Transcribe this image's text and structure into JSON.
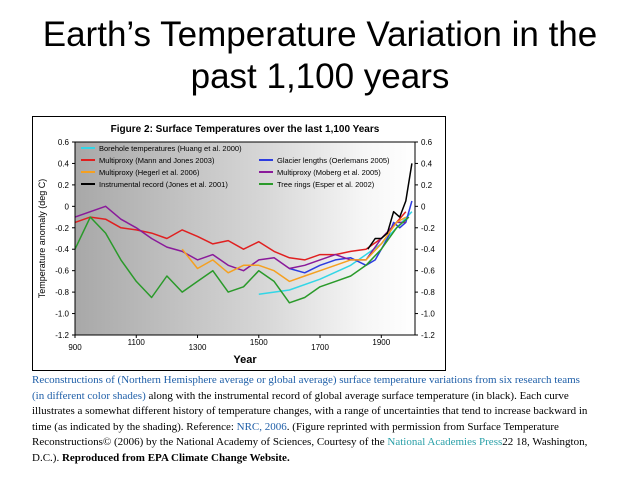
{
  "slide": {
    "title_line1": "Earth’s Temperature Variation in the",
    "title_line2": "past 1,100 years"
  },
  "chart_data": {
    "type": "line",
    "title": "Figure 2: Surface Temperatures over the last 1,100 Years",
    "xlabel": "Year",
    "ylabel": "Temperature anomaly (deg C)",
    "xlim": [
      900,
      2010
    ],
    "ylim": [
      -1.2,
      0.6
    ],
    "x_ticks": [
      "900",
      "1100",
      "1300",
      "1500",
      "1700",
      "1900"
    ],
    "y_ticks": [
      "0.6",
      "0.4",
      "0.2",
      "0",
      "-0.2",
      "-0.4",
      "-0.6",
      "-0.8",
      "-1.0",
      "-1.2"
    ],
    "grid": false,
    "legend_position": "top",
    "series": [
      {
        "name": "Borehole temperatures (Huang et al. 2000)",
        "color": "#33d6e6",
        "x": [
          1500,
          1600,
          1700,
          1800,
          1900,
          2000
        ],
        "y": [
          -0.82,
          -0.78,
          -0.68,
          -0.55,
          -0.35,
          -0.05
        ]
      },
      {
        "name": "Glacier lengths (Oerlemans 2005)",
        "color": "#2c3ce0",
        "x": [
          1600,
          1650,
          1700,
          1750,
          1800,
          1850,
          1880,
          1900,
          1920,
          1940,
          1960,
          1980,
          2000
        ],
        "y": [
          -0.58,
          -0.62,
          -0.55,
          -0.5,
          -0.48,
          -0.55,
          -0.5,
          -0.4,
          -0.3,
          -0.15,
          -0.2,
          -0.15,
          0.05
        ]
      },
      {
        "name": "Multiproxy (Mann and Jones 2003)",
        "color": "#e02020",
        "x": [
          900,
          950,
          1000,
          1050,
          1100,
          1150,
          1200,
          1250,
          1300,
          1350,
          1400,
          1450,
          1500,
          1550,
          1600,
          1650,
          1700,
          1750,
          1800,
          1850,
          1900,
          1950,
          1980
        ],
        "y": [
          -0.15,
          -0.1,
          -0.12,
          -0.2,
          -0.22,
          -0.25,
          -0.3,
          -0.22,
          -0.28,
          -0.35,
          -0.32,
          -0.4,
          -0.33,
          -0.42,
          -0.48,
          -0.5,
          -0.45,
          -0.45,
          -0.42,
          -0.4,
          -0.3,
          -0.15,
          -0.05
        ]
      },
      {
        "name": "Multiproxy (Moberg et al. 2005)",
        "color": "#8a1a9a",
        "x": [
          900,
          950,
          1000,
          1050,
          1100,
          1150,
          1200,
          1250,
          1300,
          1350,
          1400,
          1450,
          1500,
          1550,
          1600,
          1650,
          1700,
          1750,
          1800,
          1850,
          1900,
          1950,
          1980
        ],
        "y": [
          -0.1,
          -0.05,
          0.0,
          -0.12,
          -0.2,
          -0.3,
          -0.38,
          -0.42,
          -0.5,
          -0.45,
          -0.55,
          -0.6,
          -0.5,
          -0.48,
          -0.58,
          -0.55,
          -0.5,
          -0.45,
          -0.5,
          -0.5,
          -0.3,
          -0.15,
          -0.15
        ]
      },
      {
        "name": "Multiproxy (Hegerl et al. 2006)",
        "color": "#f5a020",
        "x": [
          1250,
          1300,
          1350,
          1400,
          1450,
          1500,
          1550,
          1600,
          1650,
          1700,
          1750,
          1800,
          1850,
          1900,
          1950,
          1980
        ],
        "y": [
          -0.4,
          -0.58,
          -0.5,
          -0.62,
          -0.55,
          -0.55,
          -0.6,
          -0.7,
          -0.65,
          -0.6,
          -0.55,
          -0.5,
          -0.5,
          -0.35,
          -0.15,
          -0.1
        ]
      },
      {
        "name": "Tree rings (Esper et al. 2002)",
        "color": "#2a9a2a",
        "x": [
          900,
          950,
          1000,
          1050,
          1100,
          1150,
          1200,
          1250,
          1300,
          1350,
          1400,
          1450,
          1500,
          1550,
          1600,
          1650,
          1700,
          1750,
          1800,
          1850,
          1900,
          1950,
          1990
        ],
        "y": [
          -0.4,
          -0.1,
          -0.25,
          -0.5,
          -0.7,
          -0.85,
          -0.65,
          -0.8,
          -0.7,
          -0.6,
          -0.8,
          -0.75,
          -0.6,
          -0.7,
          -0.9,
          -0.85,
          -0.75,
          -0.7,
          -0.65,
          -0.55,
          -0.4,
          -0.2,
          -0.1
        ]
      },
      {
        "name": "Instrumental record (Jones et al. 2001)",
        "color": "#000000",
        "x": [
          1856,
          1880,
          1900,
          1920,
          1940,
          1960,
          1980,
          2000
        ],
        "y": [
          -0.4,
          -0.3,
          -0.3,
          -0.25,
          -0.05,
          -0.1,
          0.05,
          0.4
        ]
      }
    ]
  },
  "caption": {
    "link_text": "Reconstructions of (Northern Hemisphere average or global average) surface temperature variations from six research teams (in different color shades)",
    "text1": " along with the instrumental record of global average surface temperature (in black). Each curve illustrates a somewhat different history of temperature changes, with a range of uncertainties that tend to increase backward in time (as indicated by the shading). Reference: ",
    "ref_link": "NRC, 2006",
    "text2": ". (Figure reprinted with permission from Surface Temperature Reconstructions© (2006) by the National Academy of Sciences, Courtesy of the ",
    "press_link": "National Academies Press",
    "text3": "22  18, Washington, D.C.). ",
    "bold_text": "Reproduced from EPA Climate Change Website."
  }
}
